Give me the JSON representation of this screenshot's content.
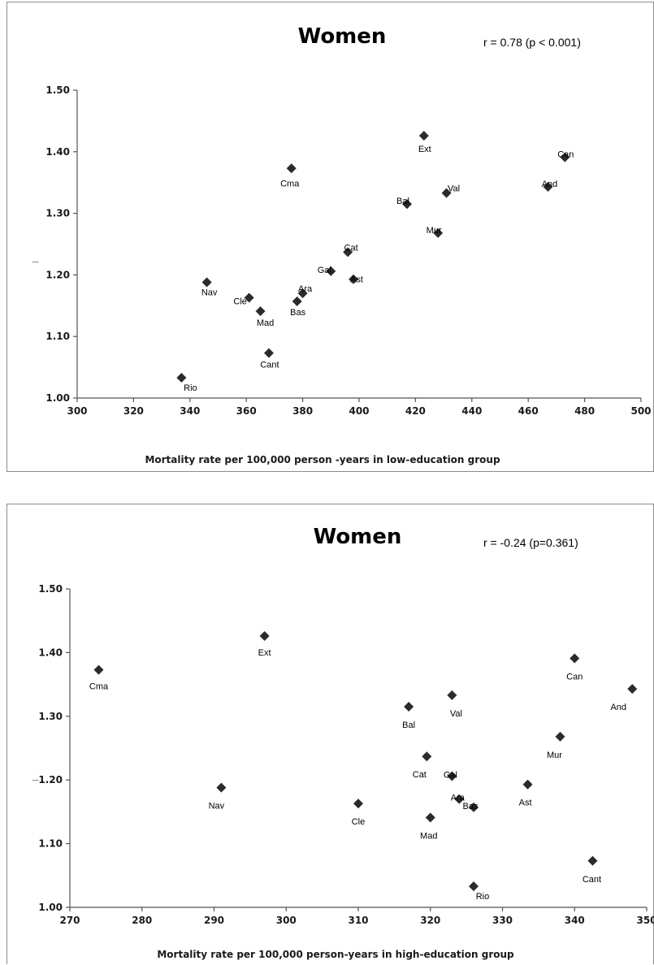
{
  "chart_data": [
    {
      "type": "scatter",
      "title": "Women",
      "annotation": "r = 0.78 (p < 0.001)",
      "xlabel": "Mortality rate per 100,000 person -years in low-education group",
      "ylabel": "—",
      "xlim": [
        300,
        500
      ],
      "ylim": [
        1.0,
        1.5
      ],
      "x_ticks": [
        300,
        320,
        340,
        360,
        380,
        400,
        420,
        440,
        460,
        480,
        500
      ],
      "y_ticks": [
        "1.00",
        "1.10",
        "1.20",
        "1.30",
        "1.40",
        "1.50"
      ],
      "grid": false,
      "legend": "none",
      "points": [
        {
          "label": "Rio",
          "x": 337,
          "y": 1.033
        },
        {
          "label": "Nav",
          "x": 346,
          "y": 1.188
        },
        {
          "label": "Cle",
          "x": 361,
          "y": 1.163
        },
        {
          "label": "Mad",
          "x": 365,
          "y": 1.141
        },
        {
          "label": "Cant",
          "x": 368,
          "y": 1.073
        },
        {
          "label": "Cma",
          "x": 376,
          "y": 1.373
        },
        {
          "label": "Bas",
          "x": 378,
          "y": 1.157
        },
        {
          "label": "Ara",
          "x": 380,
          "y": 1.17
        },
        {
          "label": "Gal",
          "x": 390,
          "y": 1.206
        },
        {
          "label": "Cat",
          "x": 396,
          "y": 1.237
        },
        {
          "label": "Ast",
          "x": 398,
          "y": 1.193
        },
        {
          "label": "Bal",
          "x": 417,
          "y": 1.315
        },
        {
          "label": "Ext",
          "x": 423,
          "y": 1.426
        },
        {
          "label": "Mur",
          "x": 428,
          "y": 1.268
        },
        {
          "label": "Val",
          "x": 431,
          "y": 1.333
        },
        {
          "label": "And",
          "x": 467,
          "y": 1.343
        },
        {
          "label": "Can",
          "x": 473,
          "y": 1.391
        }
      ]
    },
    {
      "type": "scatter",
      "title": "Women",
      "annotation": "r = -0.24 (p=0.361)",
      "xlabel": "Mortality rate per 100,000 person-years in high-education group",
      "ylabel": "—",
      "xlim": [
        270,
        350
      ],
      "ylim": [
        1.0,
        1.5
      ],
      "x_ticks": [
        270,
        280,
        290,
        300,
        310,
        320,
        330,
        340,
        350
      ],
      "y_ticks": [
        "1.00",
        "1.10",
        "1.20",
        "1.30",
        "1.40",
        "1.50"
      ],
      "grid": false,
      "legend": "none",
      "points": [
        {
          "label": "Cma",
          "x": 274,
          "y": 1.373
        },
        {
          "label": "Nav",
          "x": 291,
          "y": 1.188
        },
        {
          "label": "Ext",
          "x": 297,
          "y": 1.426
        },
        {
          "label": "Cle",
          "x": 310,
          "y": 1.163
        },
        {
          "label": "Bal",
          "x": 317,
          "y": 1.315
        },
        {
          "label": "Cat",
          "x": 319.5,
          "y": 1.237
        },
        {
          "label": "Mad",
          "x": 320,
          "y": 1.141
        },
        {
          "label": "Val",
          "x": 323,
          "y": 1.333
        },
        {
          "label": "Gal",
          "x": 323,
          "y": 1.206
        },
        {
          "label": "Ara",
          "x": 324,
          "y": 1.17
        },
        {
          "label": "Bas",
          "x": 326,
          "y": 1.157
        },
        {
          "label": "Rio",
          "x": 326,
          "y": 1.033
        },
        {
          "label": "Ast",
          "x": 333.5,
          "y": 1.193
        },
        {
          "label": "Mur",
          "x": 338,
          "y": 1.268
        },
        {
          "label": "Can",
          "x": 340,
          "y": 1.391
        },
        {
          "label": "Cant",
          "x": 342.5,
          "y": 1.073
        },
        {
          "label": "And",
          "x": 348,
          "y": 1.343
        }
      ]
    }
  ]
}
